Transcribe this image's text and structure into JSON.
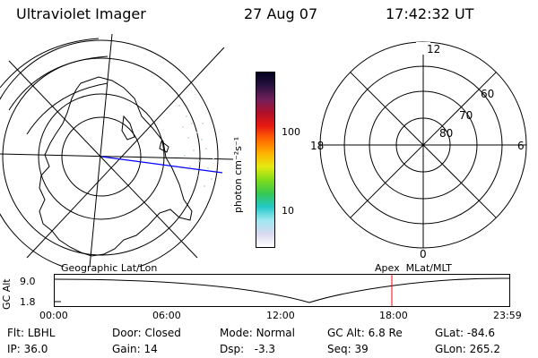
{
  "header": {
    "instrument": "Ultraviolet Imager",
    "date": "27 Aug 07",
    "time": "17:42:32 UT"
  },
  "colorbar": {
    "unit_label": "photon cm⁻²s⁻¹",
    "ticks": [
      "100",
      "10"
    ],
    "colors": [
      "#ffffff",
      "#d8d8f0",
      "#9fe8f2",
      "#22c8c8",
      "#38c850",
      "#7fdc1a",
      "#e6ea12",
      "#ffb000",
      "#ff6a00",
      "#e81a10",
      "#b0102a",
      "#70205a",
      "#2a1240",
      "#000020"
    ]
  },
  "geo_map": {
    "label": "Geographic Lat/Lon"
  },
  "polar_plot": {
    "label": "Apex  MLat/MLT",
    "mlt_labels": [
      "12",
      "18",
      "6",
      "0"
    ],
    "lat_labels": [
      "60",
      "70",
      "80"
    ]
  },
  "timeline": {
    "ylabel": "GC Alt",
    "y_ticks": [
      "9.0",
      "1.8"
    ],
    "x_ticks": [
      "00:00",
      "06:00",
      "12:00",
      "18:00",
      "23:59"
    ],
    "current_time_marker_color": "#ff0000"
  },
  "status": {
    "row1": [
      {
        "label": "Flt:",
        "value": "LBHL"
      },
      {
        "label": "Door:",
        "value": "Closed"
      },
      {
        "label": "Mode:",
        "value": "Normal"
      },
      {
        "label": "GC Alt:",
        "value": "6.8 Re"
      },
      {
        "label": "GLat:",
        "value": "-84.6"
      }
    ],
    "row2": [
      {
        "label": "IP:",
        "value": "36.0"
      },
      {
        "label": "Gain:",
        "value": "14"
      },
      {
        "label": "Dsp:",
        "value": "  -3.3"
      },
      {
        "label": "Seq:",
        "value": "39"
      },
      {
        "label": "GLon:",
        "value": "265.2"
      }
    ]
  }
}
